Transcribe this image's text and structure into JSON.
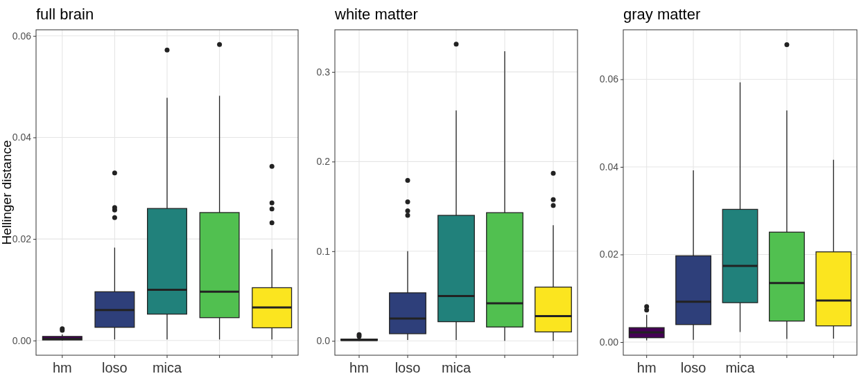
{
  "chart_data": [
    {
      "type": "box",
      "title": "full brain",
      "ylabel": "Hellinger distance",
      "categories": [
        "hm",
        "loso",
        "mica",
        null,
        null
      ],
      "colors": [
        "#440154",
        "#2e3f7a",
        "#21817b",
        "#51c050",
        "#fbe51f"
      ],
      "ylim": [
        -0.0029,
        0.0612
      ],
      "yticks": [
        {
          "value": 0,
          "label": "0.00"
        },
        {
          "value": 0.02,
          "label": "0.02"
        },
        {
          "value": 0.04,
          "label": "0.04"
        },
        {
          "value": 0.06,
          "label": "0.06"
        }
      ],
      "grid": true,
      "boxes": [
        {
          "low": 0,
          "q1": 0.0001,
          "median": 0.0003,
          "q3": 0.0008,
          "high": 0.0012,
          "outliers": [
            0.002,
            0.0023
          ]
        },
        {
          "low": 0.0002,
          "q1": 0.0026,
          "median": 0.006,
          "q3": 0.0096,
          "high": 0.0183,
          "outliers": [
            0.0242,
            0.0257,
            0.0262,
            0.033
          ]
        },
        {
          "low": 0.0002,
          "q1": 0.0052,
          "median": 0.01,
          "q3": 0.026,
          "high": 0.0478,
          "outliers": [
            0.0572
          ]
        },
        {
          "low": 0.0002,
          "q1": 0.0045,
          "median": 0.0096,
          "q3": 0.0252,
          "high": 0.0482,
          "outliers": [
            0.0583
          ]
        },
        {
          "low": 0.0002,
          "q1": 0.0025,
          "median": 0.0065,
          "q3": 0.0104,
          "high": 0.018,
          "outliers": [
            0.0232,
            0.0259,
            0.0271,
            0.0343
          ]
        }
      ]
    },
    {
      "type": "box",
      "title": "white matter",
      "categories": [
        "hm",
        "loso",
        "mica",
        null,
        null
      ],
      "colors": [
        "#440154",
        "#2e3f7a",
        "#21817b",
        "#51c050",
        "#fbe51f"
      ],
      "ylim": [
        -0.016,
        0.347
      ],
      "yticks": [
        {
          "value": 0,
          "label": "0.0"
        },
        {
          "value": 0.1,
          "label": "0.1"
        },
        {
          "value": 0.2,
          "label": "0.2"
        },
        {
          "value": 0.3,
          "label": "0.3"
        }
      ],
      "grid": true,
      "boxes": [
        {
          "low": 0,
          "q1": 0.0005,
          "median": 0.001,
          "q3": 0.002,
          "high": 0.003,
          "outliers": [
            0.005,
            0.007
          ]
        },
        {
          "low": 0.001,
          "q1": 0.008,
          "median": 0.025,
          "q3": 0.0536,
          "high": 0.1,
          "outliers": [
            0.14,
            0.145,
            0.155,
            0.179
          ]
        },
        {
          "low": 0.001,
          "q1": 0.0214,
          "median": 0.05,
          "q3": 0.14,
          "high": 0.257,
          "outliers": [
            0.331
          ]
        },
        {
          "low": 0,
          "q1": 0.0155,
          "median": 0.042,
          "q3": 0.143,
          "high": 0.323
        },
        {
          "low": 0,
          "q1": 0.01,
          "median": 0.0276,
          "q3": 0.06,
          "high": 0.129,
          "outliers": [
            0.151,
            0.1575,
            0.187
          ]
        }
      ]
    },
    {
      "type": "box",
      "title": "gray matter",
      "categories": [
        "hm",
        "loso",
        "mica",
        null,
        null
      ],
      "colors": [
        "#440154",
        "#2e3f7a",
        "#21817b",
        "#51c050",
        "#fbe51f"
      ],
      "ylim": [
        -0.003,
        0.0713
      ],
      "yticks": [
        {
          "value": 0,
          "label": "0.00"
        },
        {
          "value": 0.02,
          "label": "0.02"
        },
        {
          "value": 0.04,
          "label": "0.04"
        },
        {
          "value": 0.06,
          "label": "0.06"
        }
      ],
      "grid": true,
      "boxes": [
        {
          "low": 0.0004,
          "q1": 0.001,
          "median": 0.0022,
          "q3": 0.0033,
          "high": 0.0062,
          "outliers": [
            0.0073,
            0.0081
          ]
        },
        {
          "low": 0.0005,
          "q1": 0.004,
          "median": 0.0092,
          "q3": 0.0197,
          "high": 0.0392
        },
        {
          "low": 0.0023,
          "q1": 0.009,
          "median": 0.0174,
          "q3": 0.0303,
          "high": 0.0593
        },
        {
          "low": 0.0007,
          "q1": 0.0048,
          "median": 0.0135,
          "q3": 0.0251,
          "high": 0.0529,
          "outliers": [
            0.0679
          ]
        },
        {
          "low": 0.0008,
          "q1": 0.0037,
          "median": 0.0095,
          "q3": 0.0206,
          "high": 0.0416
        }
      ]
    }
  ]
}
